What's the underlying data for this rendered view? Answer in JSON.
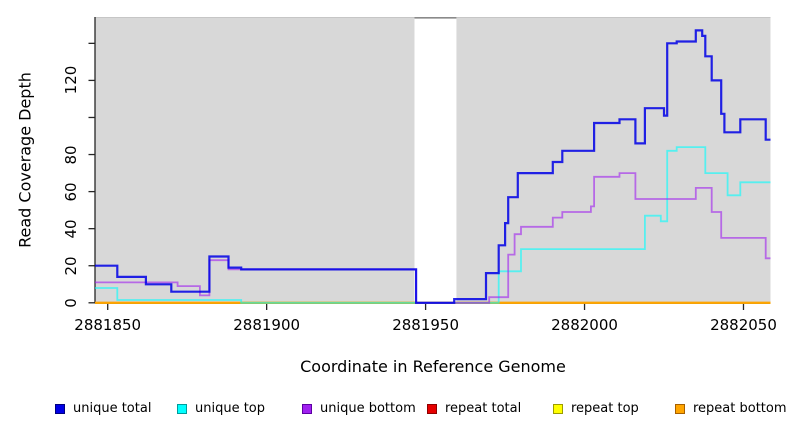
{
  "chart_data": {
    "type": "line",
    "style": "step",
    "title": "",
    "xlabel": "Coordinate in Reference Genome",
    "ylabel": "Read Coverage Depth",
    "xlim": [
      2881846,
      2882058.5
    ],
    "ylim": [
      0,
      154
    ],
    "grid": false,
    "legend_position": "bottom",
    "plot_bg_color": "#d8d8d8",
    "axis_color": "#262626",
    "x_ticks": [
      {
        "value": 2881850,
        "label": "2881850"
      },
      {
        "value": 2881900,
        "label": "2881900"
      },
      {
        "value": 2881950,
        "label": "2881950"
      },
      {
        "value": 2882000,
        "label": "2882000"
      },
      {
        "value": 2882050,
        "label": "2882050"
      }
    ],
    "y_ticks": [
      {
        "value": 0,
        "label": "0"
      },
      {
        "value": 20,
        "label": "20"
      },
      {
        "value": 40,
        "label": "40"
      },
      {
        "value": 60,
        "label": "60"
      },
      {
        "value": 80,
        "label": "80"
      },
      {
        "value": 100,
        "label": ""
      },
      {
        "value": 120,
        "label": "120"
      },
      {
        "value": 140,
        "label": ""
      }
    ],
    "gap_band": {
      "x_start": 2881946.5,
      "x_end": 2881959.7,
      "color": "#ffffff",
      "cap_color": "#8a8a8a",
      "top_edge_color": "#c6c6c6"
    },
    "series": [
      {
        "name": "unique total",
        "color": "#0000e6",
        "legend_border": "#000080",
        "opacity": 0.85,
        "width": 2.2,
        "points": [
          [
            2881846,
            20
          ],
          [
            2881853,
            14
          ],
          [
            2881862,
            10
          ],
          [
            2881870,
            6
          ],
          [
            2881882,
            25
          ],
          [
            2881888,
            19
          ],
          [
            2881892,
            18
          ],
          [
            2881947,
            0
          ],
          [
            2881959,
            2
          ],
          [
            2881969,
            16
          ],
          [
            2881973,
            31
          ],
          [
            2881975,
            43
          ],
          [
            2881976,
            57
          ],
          [
            2881979,
            70
          ],
          [
            2881990,
            76
          ],
          [
            2881993,
            82
          ],
          [
            2882003,
            97
          ],
          [
            2882011,
            99
          ],
          [
            2882016,
            86
          ],
          [
            2882019,
            105
          ],
          [
            2882025,
            101
          ],
          [
            2882026,
            140
          ],
          [
            2882029,
            141
          ],
          [
            2882035,
            147
          ],
          [
            2882037,
            144
          ],
          [
            2882038,
            133
          ],
          [
            2882040,
            120
          ],
          [
            2882043,
            102
          ],
          [
            2882044,
            92
          ],
          [
            2882049,
            99
          ],
          [
            2882057,
            88
          ]
        ]
      },
      {
        "name": "unique top",
        "color": "#00ffff",
        "legend_border": "#009c9c",
        "opacity": 0.6,
        "width": 1.8,
        "points": [
          [
            2881846,
            8
          ],
          [
            2881853,
            1.5
          ],
          [
            2881892,
            0
          ],
          [
            2881973,
            17
          ],
          [
            2881980,
            29
          ],
          [
            2882019,
            47
          ],
          [
            2882024,
            44
          ],
          [
            2882026,
            82
          ],
          [
            2882029,
            84
          ],
          [
            2882038,
            70
          ],
          [
            2882045,
            58
          ],
          [
            2882049,
            65
          ]
        ]
      },
      {
        "name": "unique bottom",
        "color": "#a020f0",
        "legend_border": "#5c00a3",
        "opacity": 0.6,
        "width": 1.8,
        "points": [
          [
            2881846,
            11
          ],
          [
            2881872,
            9
          ],
          [
            2881879,
            4
          ],
          [
            2881882,
            23
          ],
          [
            2881888,
            18
          ],
          [
            2881947,
            0
          ],
          [
            2881970,
            3
          ],
          [
            2881976,
            26
          ],
          [
            2881978,
            37
          ],
          [
            2881980,
            41
          ],
          [
            2881990,
            46
          ],
          [
            2881993,
            49
          ],
          [
            2882002,
            52
          ],
          [
            2882003,
            68
          ],
          [
            2882011,
            70
          ],
          [
            2882016,
            56
          ],
          [
            2882035,
            62
          ],
          [
            2882040,
            49
          ],
          [
            2882043,
            35
          ],
          [
            2882057,
            24
          ]
        ]
      },
      {
        "name": "repeat total",
        "color": "#e60000",
        "legend_border": "#8f0000",
        "opacity": 1,
        "width": 1.8,
        "points": [
          [
            2881846,
            0
          ]
        ]
      },
      {
        "name": "repeat top",
        "color": "#ffff00",
        "legend_border": "#9c9c00",
        "opacity": 1,
        "width": 1.8,
        "points": [
          [
            2881846,
            0
          ]
        ]
      },
      {
        "name": "repeat bottom",
        "color": "#ffa500",
        "legend_border": "#a66000",
        "opacity": 1,
        "width": 2,
        "points": [
          [
            2881846,
            0
          ]
        ]
      }
    ],
    "draw_order": [
      "repeat total",
      "repeat top",
      "repeat bottom",
      "unique top",
      "unique bottom",
      "unique total"
    ]
  }
}
